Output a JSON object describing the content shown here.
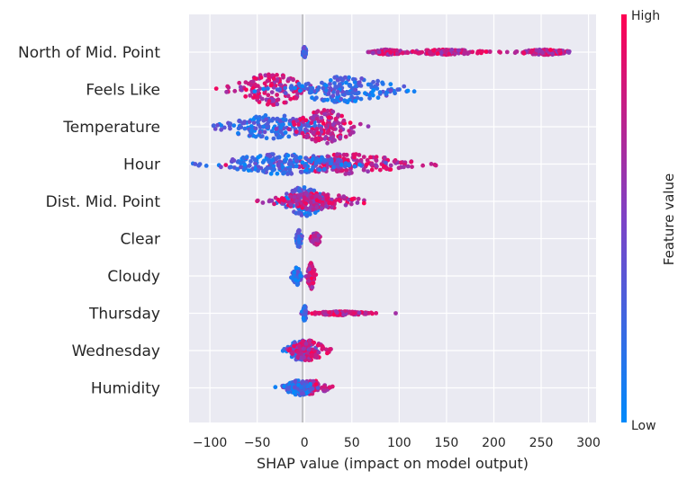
{
  "chart_data": {
    "type": "scatter",
    "subtype": "shap-beeswarm",
    "title": "",
    "xlabel": "SHAP value (impact on model output)",
    "xlim": [
      -122,
      308
    ],
    "x_ticks": [
      -100,
      -50,
      0,
      50,
      100,
      150,
      200,
      250,
      300
    ],
    "x_tick_labels": [
      "−100",
      "−50",
      "0",
      "50",
      "100",
      "150",
      "200",
      "250",
      "300"
    ],
    "grid": true,
    "colorbar": {
      "title": "Feature value",
      "high_label": "High",
      "low_label": "Low",
      "colors": [
        "#008afb",
        "#7d42c6",
        "#ff0052"
      ]
    },
    "features": [
      {
        "name": "North of Mid. Point",
        "low": {
          "center": 0,
          "spread": 2,
          "width": 0.28
        },
        "high": [
          {
            "center": 88,
            "spread": 20,
            "width": 0.14
          },
          {
            "center": 150,
            "spread": 45,
            "width": 0.14
          },
          {
            "center": 255,
            "spread": 34,
            "width": 0.14
          }
        ]
      },
      {
        "name": "Feels Like",
        "low": {
          "center": 40,
          "spread": 70,
          "width": 0.7
        },
        "high": {
          "center": -35,
          "spread": 45,
          "width": 0.85
        }
      },
      {
        "name": "Temperature",
        "low": {
          "center": -35,
          "spread": 60,
          "width": 0.65
        },
        "high": {
          "center": 22,
          "spread": 38,
          "width": 0.9
        }
      },
      {
        "name": "Hour",
        "low": {
          "center": -22,
          "spread": 80,
          "width": 0.55
        },
        "high": {
          "center": 45,
          "spread": 75,
          "width": 0.55
        }
      },
      {
        "name": "Dist. Mid. Point",
        "low": {
          "center": 0,
          "spread": 28,
          "width": 0.8
        },
        "high": {
          "center": 10,
          "spread": 55,
          "width": 0.45
        }
      },
      {
        "name": "Clear",
        "low": {
          "center": -6,
          "spread": 3,
          "width": 0.45
        },
        "high": {
          "center": 12,
          "spread": 5,
          "width": 0.35
        }
      },
      {
        "name": "Cloudy",
        "low": {
          "center": -8,
          "spread": 5,
          "width": 0.5
        },
        "high": {
          "center": 7,
          "spread": 4,
          "width": 0.7
        }
      },
      {
        "name": "Thursday",
        "low": {
          "center": 0,
          "spread": 2,
          "width": 0.4
        },
        "high": {
          "center": 38,
          "spread": 36,
          "width": 0.1
        }
      },
      {
        "name": "Wednesday",
        "low": {
          "center": -4,
          "spread": 18,
          "width": 0.55
        },
        "high": {
          "center": 4,
          "spread": 22,
          "width": 0.55
        }
      },
      {
        "name": "Humidity",
        "low": {
          "center": -6,
          "spread": 18,
          "width": 0.4
        },
        "high": {
          "center": 8,
          "spread": 22,
          "width": 0.4
        }
      }
    ]
  }
}
